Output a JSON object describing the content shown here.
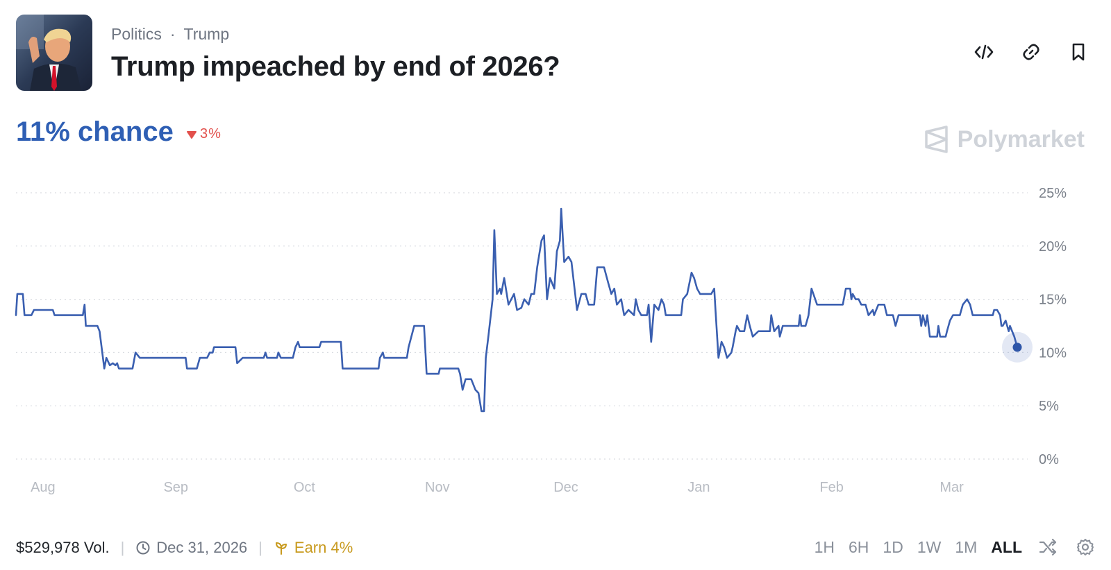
{
  "header": {
    "category": "Politics",
    "tag": "Trump",
    "separator": "·",
    "title": "Trump impeached by end of 2026?"
  },
  "summary": {
    "chance_label": "11% chance",
    "change_label": "3%",
    "change_direction": "down",
    "brand": "Polymarket"
  },
  "footer": {
    "volume": "$529,978 Vol.",
    "end_date": "Dec 31, 2026",
    "earn": "Earn 4%"
  },
  "ranges": [
    "1H",
    "6H",
    "1D",
    "1W",
    "1M",
    "ALL"
  ],
  "selected_range": "ALL",
  "colors": {
    "line": "#3a5fb0",
    "accent": "#2f5fb4",
    "negative": "#e2504c",
    "earn": "#c89a1e"
  },
  "chart_data": {
    "type": "line",
    "ylim": [
      0,
      25
    ],
    "y_ticks": [
      "0%",
      "5%",
      "10%",
      "15%",
      "20%",
      "25%"
    ],
    "y_tick_values": [
      0,
      5,
      10,
      15,
      20,
      25
    ],
    "x_labels": [
      "Aug",
      "Sep",
      "Oct",
      "Nov",
      "Dec",
      "Jan",
      "Feb",
      "Mar"
    ],
    "x_label_positions": [
      0.7,
      31.7,
      61.7,
      92.7,
      122.7,
      153.7,
      184.7,
      212.7
    ],
    "grid": true,
    "series": [
      {
        "values": [
          [
            -5.6,
            13.5
          ],
          [
            -5.3,
            15.5
          ],
          [
            -4,
            15.5
          ],
          [
            -3.6,
            13.5
          ],
          [
            -2,
            13.5
          ],
          [
            -1.4,
            14
          ],
          [
            3,
            14
          ],
          [
            3.4,
            13.5
          ],
          [
            10,
            13.5
          ],
          [
            10.4,
            14.5
          ],
          [
            10.7,
            12.5
          ],
          [
            13.4,
            12.5
          ],
          [
            13.9,
            12
          ],
          [
            15,
            8.5
          ],
          [
            15.5,
            9.5
          ],
          [
            16.3,
            8.8
          ],
          [
            17,
            9
          ],
          [
            17.6,
            8.8
          ],
          [
            18,
            9
          ],
          [
            18.4,
            8.5
          ],
          [
            21.6,
            8.5
          ],
          [
            22.3,
            10
          ],
          [
            23.3,
            9.5
          ],
          [
            34,
            9.5
          ],
          [
            34.3,
            8.5
          ],
          [
            36.6,
            8.5
          ],
          [
            37.3,
            9.5
          ],
          [
            39,
            9.5
          ],
          [
            39.6,
            10
          ],
          [
            40.3,
            10
          ],
          [
            40.6,
            10.5
          ],
          [
            45.6,
            10.5
          ],
          [
            46,
            9
          ],
          [
            47.3,
            9.5
          ],
          [
            52.2,
            9.5
          ],
          [
            52.6,
            10
          ],
          [
            53,
            9.5
          ],
          [
            55.3,
            9.5
          ],
          [
            55.6,
            10
          ],
          [
            56.2,
            9.5
          ],
          [
            59,
            9.5
          ],
          [
            59.6,
            10.5
          ],
          [
            60.2,
            11
          ],
          [
            60.6,
            10.5
          ],
          [
            65.2,
            10.5
          ],
          [
            65.6,
            11
          ],
          [
            70.2,
            11
          ],
          [
            70.6,
            8.5
          ],
          [
            79,
            8.5
          ],
          [
            79.3,
            9.5
          ],
          [
            80,
            10
          ],
          [
            80.3,
            9.5
          ],
          [
            85.6,
            9.5
          ],
          [
            86,
            10.5
          ],
          [
            87.3,
            12.5
          ],
          [
            89.6,
            12.5
          ],
          [
            90.2,
            8
          ],
          [
            93,
            8
          ],
          [
            93.3,
            8.5
          ],
          [
            97.6,
            8.5
          ],
          [
            98,
            8
          ],
          [
            98.6,
            6.5
          ],
          [
            99.3,
            7.5
          ],
          [
            100.6,
            7.5
          ],
          [
            101.6,
            6.5
          ],
          [
            102.3,
            6.2
          ],
          [
            103,
            4.5
          ],
          [
            103.6,
            4.5
          ],
          [
            104,
            9.5
          ],
          [
            104.6,
            11.5
          ],
          [
            105.6,
            15
          ],
          [
            106,
            21.5
          ],
          [
            106.6,
            15.5
          ],
          [
            107.3,
            16
          ],
          [
            107.6,
            15.5
          ],
          [
            108.3,
            17
          ],
          [
            109.3,
            14.5
          ],
          [
            110.6,
            15.5
          ],
          [
            111.3,
            14
          ],
          [
            112.3,
            14.2
          ],
          [
            113,
            15
          ],
          [
            114,
            14.5
          ],
          [
            114.6,
            15.5
          ],
          [
            115.3,
            15.5
          ],
          [
            116,
            18
          ],
          [
            117,
            20.5
          ],
          [
            117.6,
            21
          ],
          [
            118.3,
            15
          ],
          [
            119,
            17
          ],
          [
            120,
            16
          ],
          [
            120.6,
            19.5
          ],
          [
            121.3,
            20.5
          ],
          [
            121.6,
            23.5
          ],
          [
            122.3,
            18.5
          ],
          [
            123.3,
            19
          ],
          [
            124,
            18.5
          ],
          [
            125.3,
            14
          ],
          [
            126.3,
            15.5
          ],
          [
            127.3,
            15.5
          ],
          [
            128,
            14.5
          ],
          [
            129.3,
            14.5
          ],
          [
            130,
            18
          ],
          [
            131.6,
            18
          ],
          [
            132.6,
            16.5
          ],
          [
            133.3,
            15.5
          ],
          [
            134,
            16
          ],
          [
            134.6,
            14.5
          ],
          [
            135.6,
            15
          ],
          [
            136.3,
            13.5
          ],
          [
            137.3,
            14
          ],
          [
            138.6,
            13.5
          ],
          [
            139,
            15
          ],
          [
            139.6,
            14
          ],
          [
            140.3,
            13.5
          ],
          [
            141.6,
            13.5
          ],
          [
            142,
            14.5
          ],
          [
            142.6,
            11
          ],
          [
            143.3,
            14.5
          ],
          [
            144.3,
            14
          ],
          [
            145,
            15
          ],
          [
            145.6,
            14.5
          ],
          [
            146,
            13.5
          ],
          [
            149.6,
            13.5
          ],
          [
            150,
            15
          ],
          [
            151,
            15.5
          ],
          [
            152,
            17.5
          ],
          [
            152.6,
            17
          ],
          [
            153.3,
            16
          ],
          [
            154,
            15.5
          ],
          [
            156.6,
            15.5
          ],
          [
            157.3,
            16
          ],
          [
            157.6,
            14
          ],
          [
            158.3,
            9.5
          ],
          [
            159,
            11
          ],
          [
            159.6,
            10.5
          ],
          [
            160.3,
            9.5
          ],
          [
            161.3,
            10
          ],
          [
            161.6,
            10.5
          ],
          [
            162.3,
            12
          ],
          [
            162.6,
            12.5
          ],
          [
            163.3,
            12
          ],
          [
            164.3,
            12
          ],
          [
            165,
            13.5
          ],
          [
            165.6,
            12.5
          ],
          [
            166.3,
            11.5
          ],
          [
            167.6,
            12
          ],
          [
            170.3,
            12
          ],
          [
            170.6,
            13.5
          ],
          [
            171.3,
            12
          ],
          [
            172.3,
            12.5
          ],
          [
            172.6,
            11.5
          ],
          [
            173.3,
            12.5
          ],
          [
            177,
            12.5
          ],
          [
            177.3,
            13.5
          ],
          [
            177.6,
            12.5
          ],
          [
            178.6,
            12.5
          ],
          [
            179.3,
            13.5
          ],
          [
            180,
            16
          ],
          [
            181.3,
            14.5
          ],
          [
            187.3,
            14.5
          ],
          [
            188,
            16
          ],
          [
            189,
            16
          ],
          [
            189.3,
            15
          ],
          [
            189.6,
            15.5
          ],
          [
            190.3,
            15
          ],
          [
            191,
            15
          ],
          [
            191.6,
            14.5
          ],
          [
            192.6,
            14.5
          ],
          [
            193.3,
            13.5
          ],
          [
            194.3,
            14
          ],
          [
            194.6,
            13.5
          ],
          [
            195.6,
            14.5
          ],
          [
            197,
            14.5
          ],
          [
            197.6,
            13.5
          ],
          [
            199,
            13.5
          ],
          [
            199.6,
            12.5
          ],
          [
            200.3,
            13.5
          ],
          [
            205.3,
            13.5
          ],
          [
            205.6,
            12.5
          ],
          [
            206,
            13.5
          ],
          [
            206.6,
            12.5
          ],
          [
            207,
            13.5
          ],
          [
            207.6,
            11.5
          ],
          [
            209.3,
            11.5
          ],
          [
            209.6,
            12.5
          ],
          [
            210,
            11.5
          ],
          [
            211.3,
            11.5
          ],
          [
            211.6,
            12
          ],
          [
            212.3,
            13
          ],
          [
            213,
            13.5
          ],
          [
            214.6,
            13.5
          ],
          [
            215.3,
            14.5
          ],
          [
            216.3,
            15
          ],
          [
            217,
            14.5
          ],
          [
            217.6,
            13.5
          ],
          [
            222.3,
            13.5
          ],
          [
            222.6,
            14
          ],
          [
            223.3,
            14
          ],
          [
            224,
            13.5
          ],
          [
            224.3,
            12.5
          ],
          [
            224.6,
            12.5
          ],
          [
            225.3,
            13
          ],
          [
            226,
            12
          ],
          [
            226.3,
            12.5
          ],
          [
            227.3,
            11.5
          ],
          [
            228,
            10.5
          ]
        ]
      }
    ],
    "current_value": 10.5
  }
}
